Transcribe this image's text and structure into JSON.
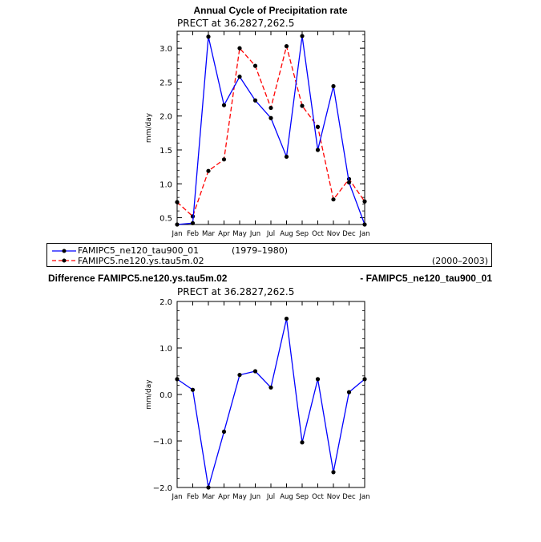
{
  "chart_data": [
    {
      "type": "line",
      "title": "Annual Cycle of Precipitation rate",
      "subtitle": "PRECT at 36.2827,262.5",
      "xlabel": "",
      "ylabel": "mm/day",
      "categories": [
        "Jan",
        "Feb",
        "Mar",
        "Apr",
        "May",
        "Jun",
        "Jul",
        "Aug",
        "Sep",
        "Oct",
        "Nov",
        "Dec",
        "Jan"
      ],
      "ylim": [
        0.4,
        3.25
      ],
      "yticks": [
        0.5,
        1.0,
        1.5,
        2.0,
        2.5,
        3.0
      ],
      "ytick_labels": [
        "0.5",
        "1.0",
        "1.5",
        "2.0",
        "2.5",
        "3.0"
      ],
      "series": [
        {
          "name": "FAMIPC5_ne120_tau900_01",
          "period": "(1979–1980)",
          "color": "#0000ff",
          "dash": "solid",
          "values": [
            0.4,
            0.42,
            3.17,
            2.16,
            2.58,
            2.23,
            1.97,
            1.4,
            3.18,
            1.5,
            2.44,
            1.02,
            0.4
          ]
        },
        {
          "name": "FAMIPC5.ne120.ys.tau5m.02",
          "period": "(2000–2003)",
          "color": "#ff0000",
          "dash": "dashed",
          "values": [
            0.73,
            0.52,
            1.19,
            1.36,
            3.0,
            2.74,
            2.12,
            3.03,
            2.15,
            1.84,
            0.77,
            1.07,
            0.74
          ]
        }
      ]
    },
    {
      "type": "line",
      "title_left": "Difference FAMIPC5.ne120.ys.tau5m.02",
      "title_right": "- FAMIPC5_ne120_tau900_01",
      "subtitle": "PRECT at 36.2827,262.5",
      "xlabel": "",
      "ylabel": "mm/day",
      "categories": [
        "Jan",
        "Feb",
        "Mar",
        "Apr",
        "May",
        "Jun",
        "Jul",
        "Aug",
        "Sep",
        "Oct",
        "Nov",
        "Dec",
        "Jan"
      ],
      "ylim": [
        -2.0,
        2.0
      ],
      "yticks": [
        -2.0,
        -1.0,
        0.0,
        1.0,
        2.0
      ],
      "ytick_labels": [
        "−2.0",
        "−1.0",
        "0.0",
        "1.0",
        "2.0"
      ],
      "series": [
        {
          "name": "difference",
          "color": "#0000ff",
          "dash": "solid",
          "values": [
            0.33,
            0.1,
            -2.0,
            -0.8,
            0.42,
            0.5,
            0.15,
            1.63,
            -1.03,
            0.33,
            -1.67,
            0.05,
            0.33
          ]
        }
      ]
    }
  ],
  "legend": {
    "entries": [
      {
        "label": "FAMIPC5_ne120_tau900_01",
        "period": "(1979–1980)"
      },
      {
        "label": "FAMIPC5.ne120.ys.tau5m.02",
        "period": "(2000–2003)"
      }
    ]
  }
}
